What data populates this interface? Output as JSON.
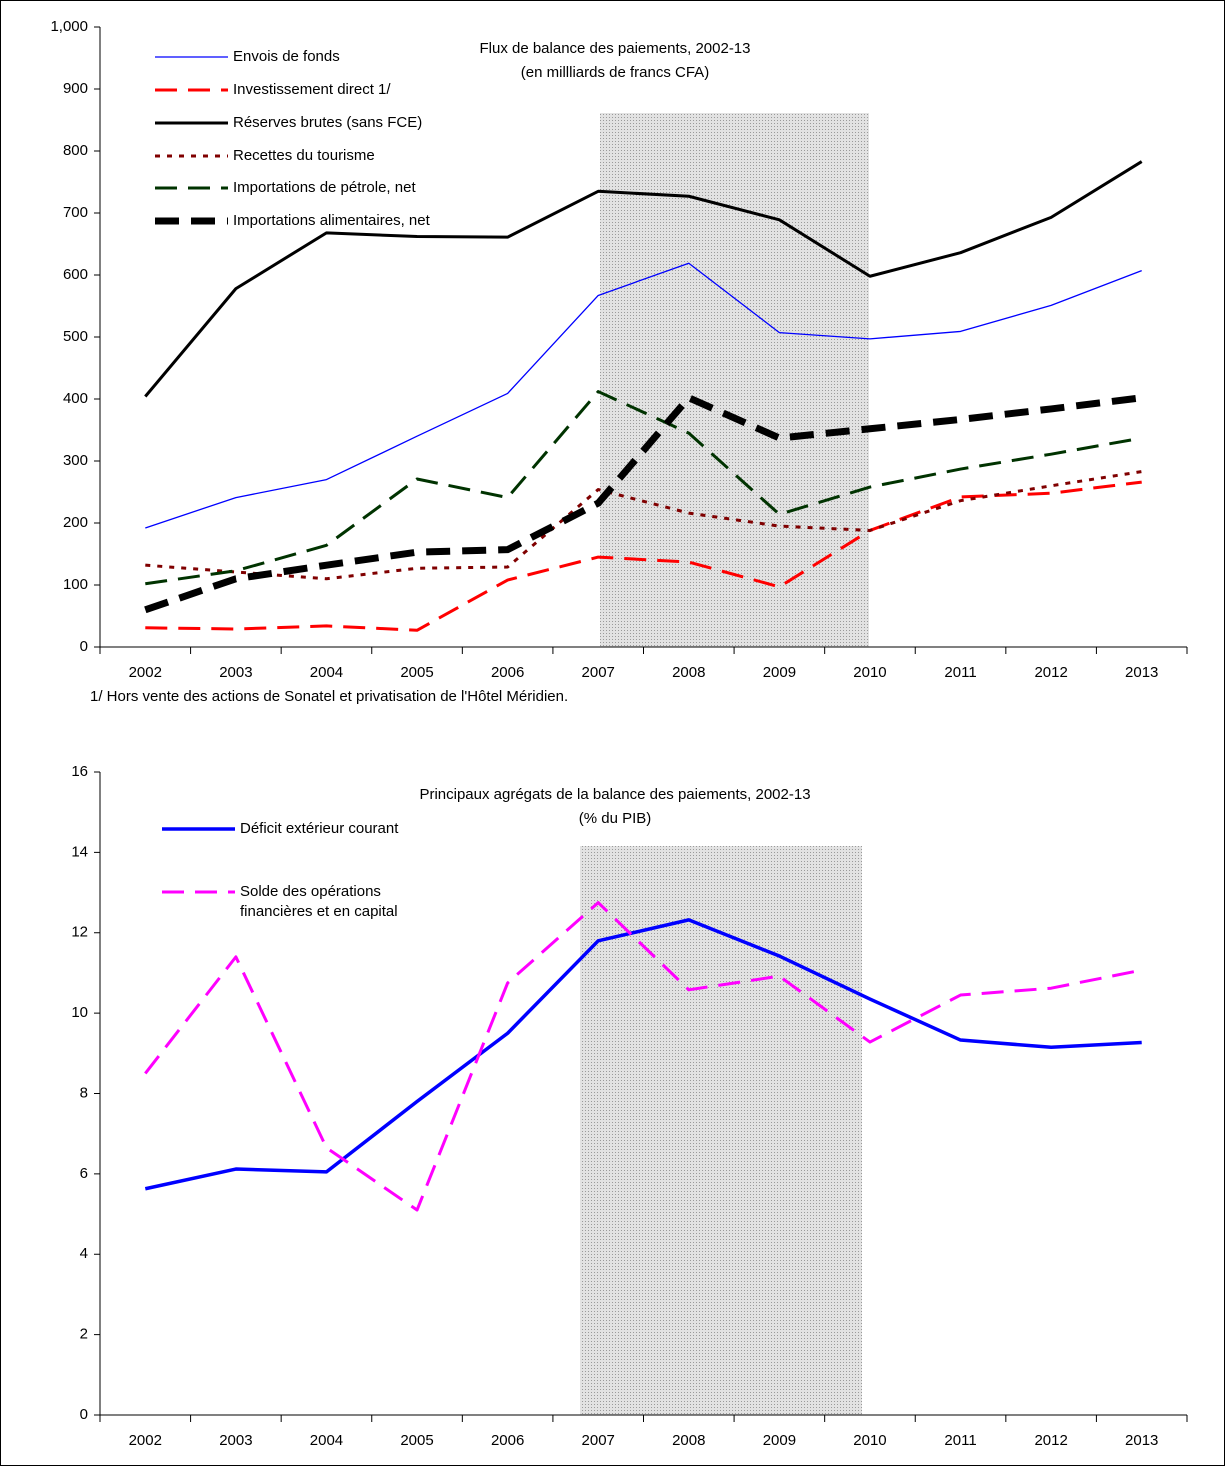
{
  "chart_data": [
    {
      "type": "line",
      "title": "Flux de balance des paiements, 2002-13",
      "subtitle": "(en millliards de francs CFA)",
      "note": "1/  Hors vente des actions de Sonatel et privatisation de l'Hôtel Méridien.",
      "categories": [
        "2002",
        "2003",
        "2004",
        "2005",
        "2006",
        "2007",
        "2008",
        "2009",
        "2010",
        "2011",
        "2012",
        "2013"
      ],
      "ylim": [
        0,
        1000
      ],
      "yticks": [
        0,
        100,
        200,
        300,
        400,
        500,
        600,
        700,
        800,
        900,
        {
          "value": 1000,
          "label": "1,000"
        }
      ],
      "grid": false,
      "series": [
        {
          "name": "Envois de fonds",
          "color": "#0000ff",
          "style": "solid",
          "values": [
            192,
            241,
            270,
            340,
            409,
            567,
            619,
            507,
            497,
            509,
            551,
            607
          ]
        },
        {
          "name": "Investissement direct 1/",
          "color": "#ff0000",
          "style": "dashed",
          "values": [
            31,
            29,
            34,
            27,
            108,
            145,
            137,
            97,
            188,
            242,
            248,
            266
          ]
        },
        {
          "name": "Réserves brutes (sans FCE)",
          "color": "#000000",
          "style": "solid",
          "values": [
            404,
            578,
            668,
            662,
            661,
            735,
            727,
            689,
            598,
            636,
            693,
            783
          ]
        },
        {
          "name": "Recettes du tourisme",
          "color": "#800000",
          "style": "dotted",
          "values": [
            132,
            121,
            110,
            127,
            129,
            254,
            216,
            195,
            188,
            236,
            260,
            283
          ]
        },
        {
          "name": "Importations de pétrole, net",
          "color": "#003300",
          "style": "dashed",
          "values": [
            102,
            123,
            164,
            271,
            241,
            412,
            345,
            214,
            258,
            287,
            311,
            337
          ]
        },
        {
          "name": "Importations alimentaires, net",
          "color": "#000000",
          "style": "dashed",
          "values": [
            60,
            110,
            132,
            153,
            157,
            232,
            402,
            337,
            352,
            367,
            384,
            402
          ]
        }
      ]
    },
    {
      "type": "line",
      "title": "Principaux agrégats de la balance des paiements, 2002-13",
      "subtitle": "(% du PIB)",
      "categories": [
        "2002",
        "2003",
        "2004",
        "2005",
        "2006",
        "2007",
        "2008",
        "2009",
        "2010",
        "2011",
        "2012",
        "2013"
      ],
      "ylim": [
        0,
        16
      ],
      "yticks": [
        0,
        2,
        4,
        6,
        8,
        10,
        12,
        14,
        16
      ],
      "grid": false,
      "series": [
        {
          "name": "Déficit extérieur courant",
          "color": "#0000ff",
          "style": "solid",
          "values": [
            5.63,
            6.12,
            6.05,
            7.8,
            9.5,
            11.8,
            12.32,
            11.42,
            10.35,
            9.33,
            9.15,
            9.27
          ]
        },
        {
          "name": "Solde des opérations financières et en capital",
          "color": "#ff00ff",
          "style": "dashed",
          "values": [
            8.5,
            11.4,
            6.65,
            5.1,
            10.75,
            12.75,
            10.58,
            10.92,
            9.28,
            10.45,
            10.62,
            11.07
          ]
        }
      ]
    }
  ]
}
